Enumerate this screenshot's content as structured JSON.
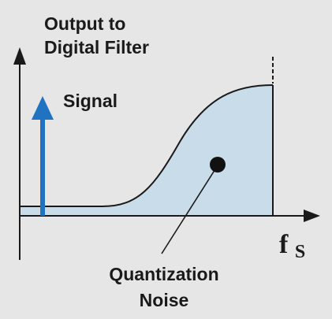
{
  "labels": {
    "output_line1": "Output to",
    "output_line2": "Digital Filter",
    "signal": "Signal",
    "fs_main": "f",
    "fs_sub": "S",
    "noise_line1": "Quantization",
    "noise_line2": "Noise"
  },
  "colors": {
    "background": "#e6e6e6",
    "noise_fill": "#c9dce9",
    "signal_arrow": "#1f73c0",
    "axis": "#1a1a1a"
  }
}
